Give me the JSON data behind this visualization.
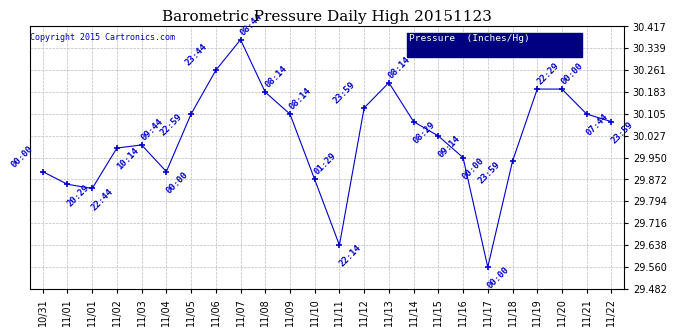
{
  "title": "Barometric Pressure Daily High 20151123",
  "copyright": "Copyright 2015 Cartronics.com",
  "legend_label": "Pressure  (Inches/Hg)",
  "ylim": [
    29.482,
    30.417
  ],
  "yticks": [
    29.482,
    29.56,
    29.638,
    29.716,
    29.794,
    29.872,
    29.95,
    30.027,
    30.105,
    30.183,
    30.261,
    30.339,
    30.417
  ],
  "x_labels": [
    "10/31",
    "11/01",
    "11/01",
    "11/02",
    "11/03",
    "11/04",
    "11/05",
    "11/06",
    "11/07",
    "11/08",
    "11/09",
    "11/10",
    "11/11",
    "11/12",
    "11/13",
    "11/14",
    "11/15",
    "11/16",
    "11/17",
    "11/18",
    "11/19",
    "11/20",
    "11/21",
    "11/22"
  ],
  "x_indices": [
    0,
    1,
    2,
    3,
    4,
    5,
    6,
    7,
    8,
    9,
    10,
    11,
    12,
    13,
    14,
    15,
    16,
    17,
    18,
    19,
    20,
    21,
    22,
    23
  ],
  "values": [
    29.9,
    29.855,
    29.84,
    29.984,
    29.995,
    29.9,
    30.105,
    30.261,
    30.37,
    30.183,
    30.105,
    29.872,
    29.638,
    30.127,
    30.217,
    30.078,
    30.027,
    29.95,
    29.56,
    29.937,
    30.194,
    30.194,
    30.105,
    30.078
  ],
  "point_labels": [
    "00:00",
    "20:29",
    "22:44",
    "10:14",
    "09:44",
    "00:00",
    "22:59",
    "23:44",
    "08:44",
    "08:14",
    "08:14",
    "01:29",
    "22:14",
    "23:59",
    "08:14",
    "08:29",
    "09:14",
    "00:00",
    "00:00",
    "23:59",
    "22:29",
    "00:00",
    "07:44",
    "23:59"
  ],
  "line_color": "#0000cc",
  "bg_color": "#ffffff",
  "plot_bg_color": "#ffffff",
  "grid_color": "#bbbbbb",
  "title_fontsize": 11,
  "tick_fontsize": 7,
  "label_fontsize": 6.5,
  "legend_bg": "#000080",
  "legend_text_color": "#ffffff"
}
